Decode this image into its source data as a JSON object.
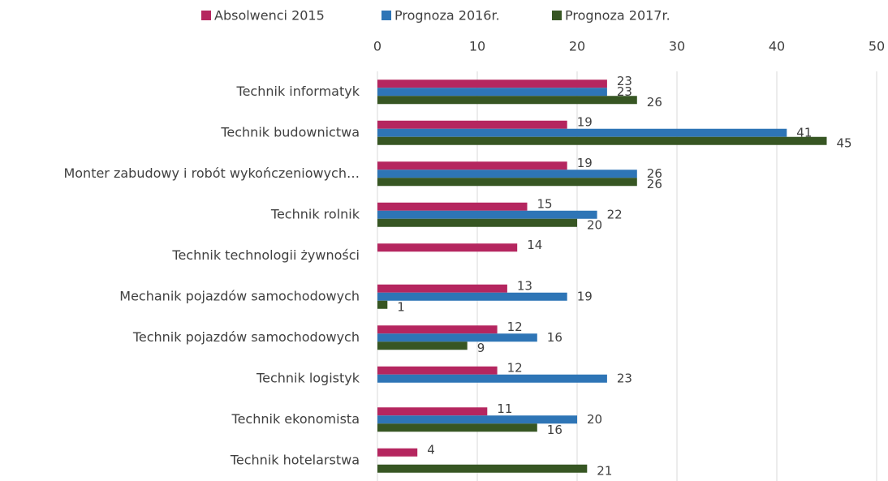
{
  "chart_data": {
    "type": "bar",
    "orientation": "horizontal",
    "categories": [
      "Technik informatyk",
      "Technik budownictwa",
      "Monter zabudowy i robót wykończeniowych…",
      "Technik rolnik",
      "Technik technologii żywności",
      "Mechanik pojazdów samochodowych",
      "Technik pojazdów samochodowych",
      "Technik logistyk",
      "Technik ekonomista",
      "Technik hotelarstwa"
    ],
    "series": [
      {
        "name": "Absolwenci 2015",
        "color": "#b5265f",
        "values": [
          23,
          19,
          19,
          15,
          14,
          13,
          12,
          12,
          11,
          4
        ]
      },
      {
        "name": "Prognoza 2016r.",
        "color": "#2e75b6",
        "values": [
          23,
          41,
          26,
          22,
          null,
          19,
          16,
          23,
          20,
          null
        ]
      },
      {
        "name": "Prognoza 2017r.",
        "color": "#375623",
        "values": [
          26,
          45,
          26,
          20,
          null,
          1,
          9,
          null,
          16,
          21
        ]
      }
    ],
    "xlim": [
      0,
      50
    ],
    "xticks": [
      0,
      10,
      20,
      30,
      40,
      50
    ],
    "grid": true,
    "legend": "top",
    "data_labels": true
  }
}
